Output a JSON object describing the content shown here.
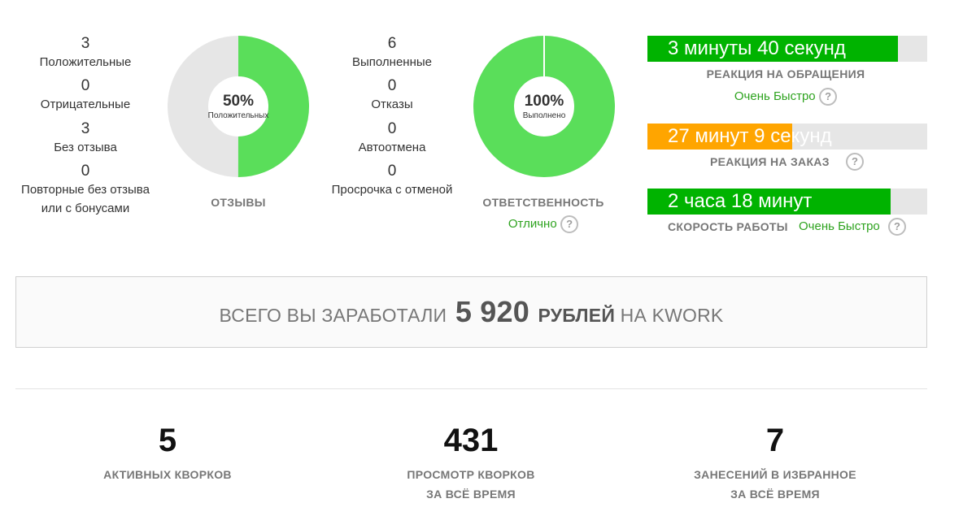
{
  "reviews": {
    "stats": [
      {
        "value": "3",
        "label": "Положительные"
      },
      {
        "value": "0",
        "label": "Отрицательные"
      },
      {
        "value": "3",
        "label": "Без отзыва"
      },
      {
        "value": "0",
        "label_line1": "Повторные без отзыва",
        "label_line2": "или с бонусами"
      }
    ],
    "donut_percent": "50%",
    "donut_sub": "Положительных",
    "donut_fraction": 0.5,
    "caption": "ОТЗЫВЫ"
  },
  "responsibility": {
    "stats": [
      {
        "value": "6",
        "label": "Выполненные"
      },
      {
        "value": "0",
        "label": "Отказы"
      },
      {
        "value": "0",
        "label": "Автоотмена"
      },
      {
        "value": "0",
        "label": "Просрочка с отменой"
      }
    ],
    "donut_percent": "100%",
    "donut_sub": "Выполнено",
    "donut_fraction": 1.0,
    "caption": "ОТВЕТСТВЕННОСТЬ",
    "rating": "Отлично"
  },
  "time_bars": [
    {
      "value": "3 минуты 40 секунд",
      "caption": "РЕАКЦИЯ НА ОБРАЩЕНИЯ",
      "rating": "Очень Быстро",
      "fill": 0.895,
      "color": "#00b300"
    },
    {
      "value": "27 минут 9 секунд",
      "caption": "РЕАКЦИЯ НА ЗАКАЗ",
      "rating": "",
      "fill": 0.517,
      "color": "#ffa500"
    },
    {
      "value": "2 часа 18 минут",
      "caption": "СКОРОСТЬ РАБОТЫ",
      "rating": "Очень Быстро",
      "fill": 0.869,
      "color": "#00b300"
    }
  ],
  "help_icon": "?",
  "earnings": {
    "prefix": "Всего вы заработали",
    "amount": "5 920",
    "currency": "рублей",
    "suffix": "на Kwork"
  },
  "totals": [
    {
      "value": "5",
      "label_line1": "Активных кворков",
      "label_line2": ""
    },
    {
      "value": "431",
      "label_line1": "Просмотр кворков",
      "label_line2": "за всё время"
    },
    {
      "value": "7",
      "label_line1": "Занесений в избранное",
      "label_line2": "за всё время"
    }
  ],
  "colors": {
    "green": "#5ade5a",
    "gray_ring": "#e6e6e6",
    "bar_green": "#00b300",
    "bar_orange": "#ffa500",
    "link_green": "#2ea31f"
  }
}
